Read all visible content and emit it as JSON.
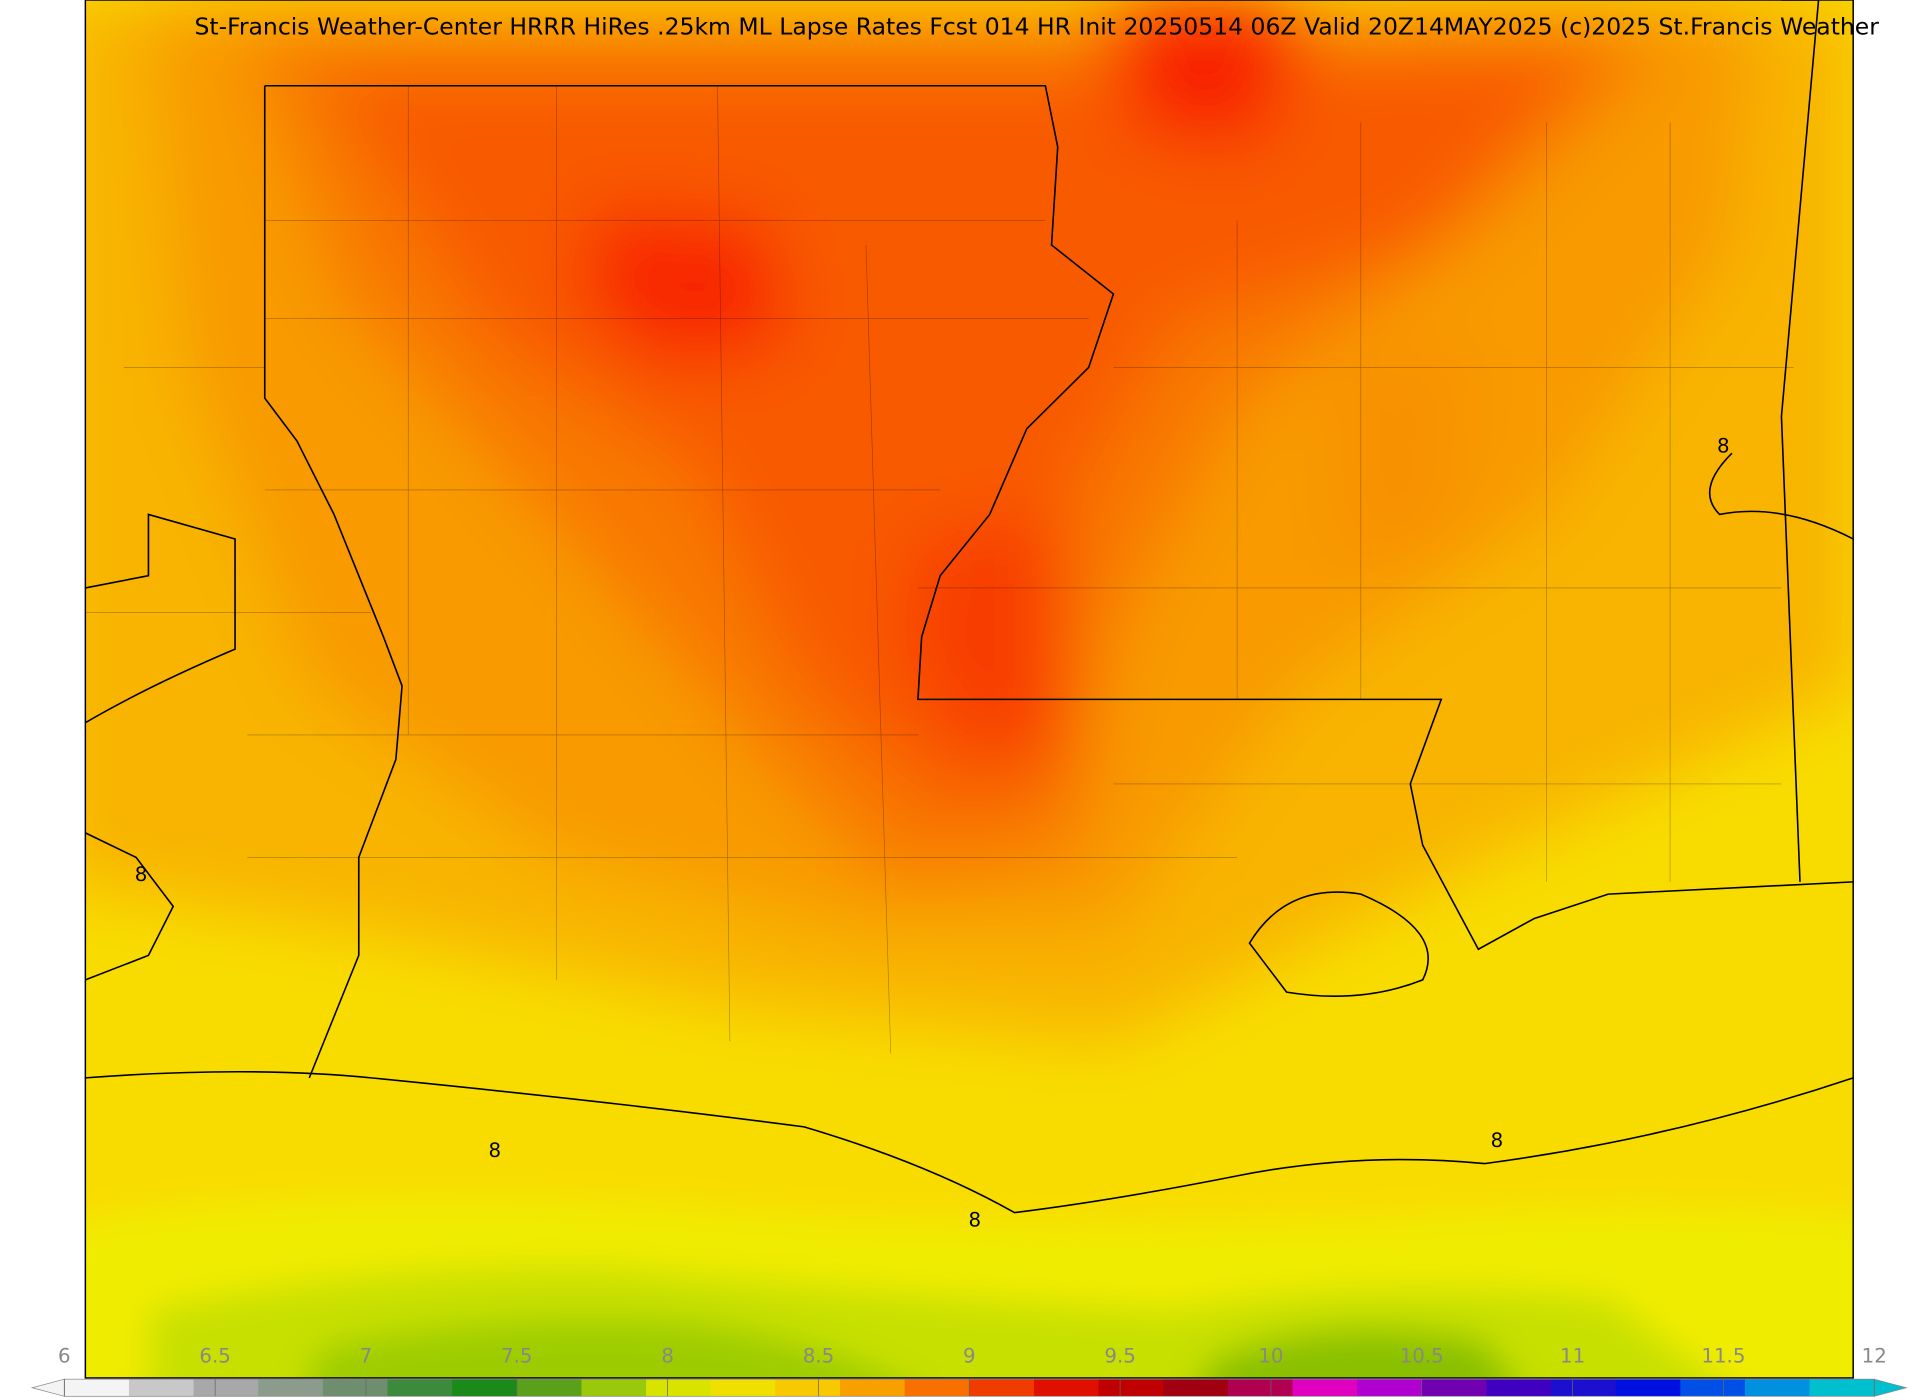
{
  "title": "St-Francis Weather-Center HRRR HiRes .25km ML Lapse Rates  Fcst 014 HR Init 20250514 06Z  Valid 20Z14MAY2025    (c)2025 St.Francis Weather",
  "contour_labels": [
    8,
    8,
    8,
    8,
    8
  ],
  "colorbar": {
    "range": [
      6,
      12
    ],
    "ticks": [
      6,
      6.5,
      7,
      7.5,
      8,
      8.5,
      9,
      9.5,
      10,
      10.5,
      11,
      11.5,
      12
    ],
    "colors": [
      "#f4f4f4",
      "#c8c8c8",
      "#a8a8a8",
      "#8c9c8c",
      "#6e8e6e",
      "#3c8a3c",
      "#1a8a1a",
      "#5aa01a",
      "#9ac80a",
      "#d8e400",
      "#f0e000",
      "#f8c800",
      "#f8a000",
      "#f87000",
      "#f03c00",
      "#e01000",
      "#c00000",
      "#a00010",
      "#b00050",
      "#e000c0",
      "#b000d0",
      "#7000b0",
      "#4000c0",
      "#1c10d0",
      "#0010e0",
      "#0050e8",
      "#0090e0",
      "#00c0d0"
    ]
  }
}
